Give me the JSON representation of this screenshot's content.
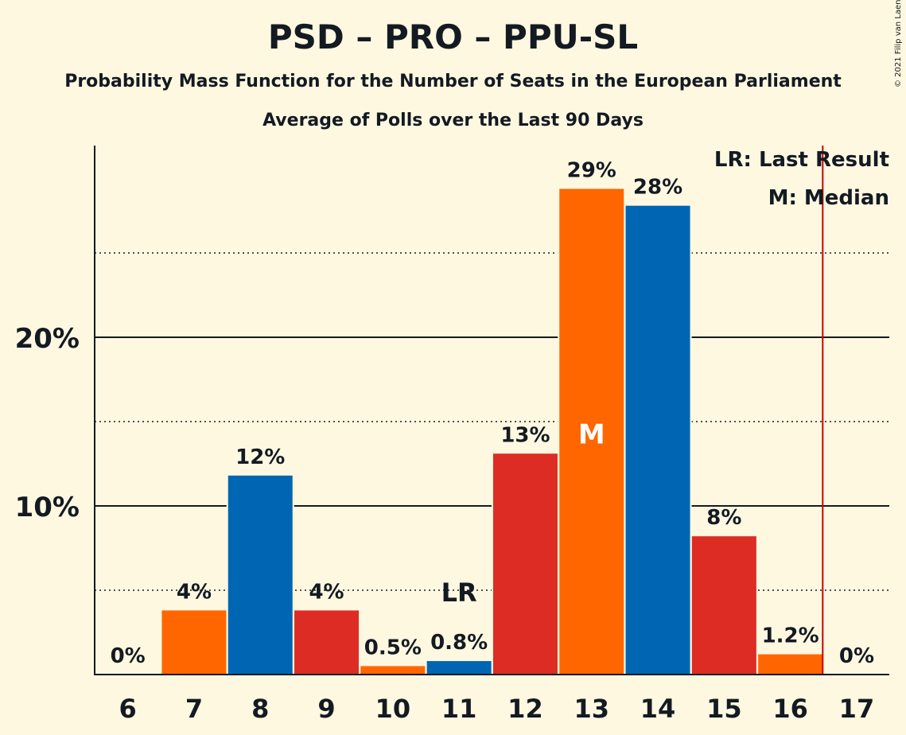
{
  "header": {
    "title": "PSD – PRO – PPU-SL",
    "subtitle1": "Probability Mass Function for the Number of Seats in the European Parliament",
    "subtitle2": "Average of Polls over the Last 90 Days",
    "copyright": "© 2021 Filip van Laenen"
  },
  "legend": {
    "last_result": "LR: Last Result",
    "median": "M: Median"
  },
  "colors": {
    "orange": "#ff6600",
    "blue": "#0066b3",
    "red": "#dd2c24",
    "background": "#fff8e1",
    "last_result_line": "#cc0000"
  },
  "chart_data": {
    "type": "bar",
    "categories": [
      "6",
      "7",
      "8",
      "9",
      "10",
      "11",
      "12",
      "13",
      "14",
      "15",
      "16",
      "17"
    ],
    "values": [
      0,
      3.8,
      11.8,
      3.8,
      0.5,
      0.8,
      13.1,
      28.8,
      27.8,
      8.2,
      1.2,
      0
    ],
    "data_labels": [
      "0%",
      "4%",
      "12%",
      "4%",
      "0.5%",
      "0.8%",
      "13%",
      "29%",
      "28%",
      "8%",
      "1.2%",
      "0%"
    ],
    "bar_colors": [
      "orange",
      "orange",
      "blue",
      "red",
      "orange",
      "blue",
      "red",
      "orange",
      "blue",
      "red",
      "orange",
      "blue"
    ],
    "y_ticks": [
      10,
      20
    ],
    "y_tick_labels": [
      "10%",
      "20%"
    ],
    "y_minor_ticks": [
      5,
      15,
      25
    ],
    "ylim": [
      0,
      31.5
    ],
    "last_result_seat": "11",
    "last_result_marker": "LR",
    "median_seat": "13",
    "median_marker": "M",
    "threshold_after_seat": "16"
  }
}
